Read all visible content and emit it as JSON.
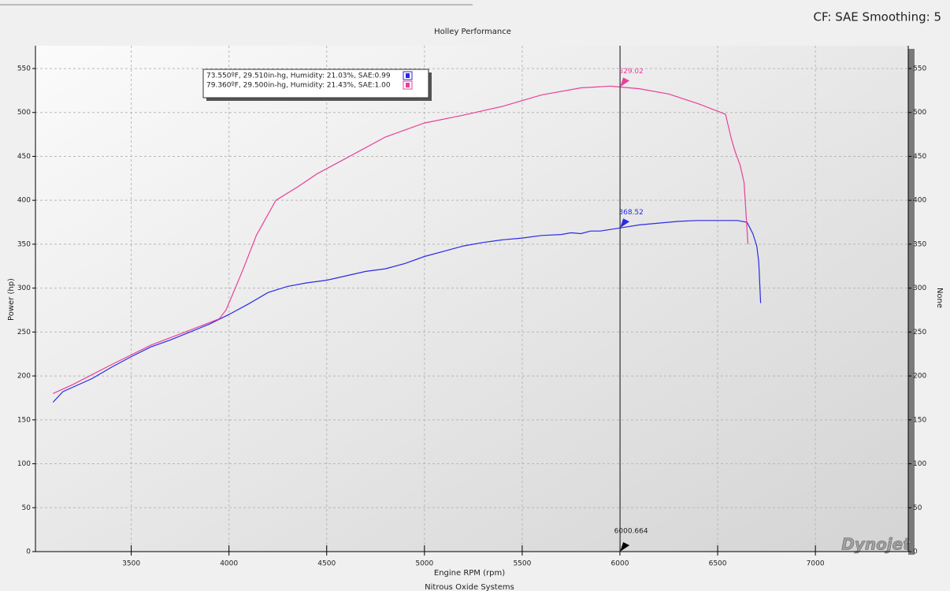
{
  "chart_data": {
    "type": "line",
    "title": "Holley Performance",
    "corner_note": "CF: SAE Smoothing: 5",
    "x_label": "Engine RPM (rpm)",
    "y_label": "Power (hp)",
    "y2_label": "None",
    "footer": "Nitrous Oxide Systems",
    "logo": "Dynojet",
    "xlim": [
      3010,
      7475
    ],
    "ylim": [
      0,
      576
    ],
    "xticks": [
      3500,
      4000,
      4500,
      5000,
      5500,
      6000,
      6500,
      7000
    ],
    "yticks": [
      0,
      50,
      100,
      150,
      200,
      250,
      300,
      350,
      400,
      450,
      500,
      550
    ],
    "grid": true,
    "legend_position": "upper left",
    "series": [
      {
        "name": "73.550ºF, 29.510in-hg, Humidity: 21.03%, SAE:0.99",
        "color": "#2a2ae6",
        "x": [
          3100,
          3150,
          3300,
          3400,
          3500,
          3600,
          3700,
          3800,
          3900,
          4000,
          4100,
          4200,
          4300,
          4400,
          4500,
          4600,
          4700,
          4800,
          4900,
          5000,
          5100,
          5200,
          5300,
          5400,
          5500,
          5600,
          5700,
          5750,
          5800,
          5850,
          5900,
          6000,
          6100,
          6200,
          6300,
          6400,
          6500,
          6600,
          6650,
          6680,
          6700,
          6710,
          6720
        ],
        "values": [
          170,
          182,
          197,
          210,
          222,
          233,
          241,
          250,
          259,
          270,
          282,
          295,
          302,
          306,
          309,
          314,
          319,
          322,
          328,
          336,
          342,
          348,
          352,
          355,
          357,
          360,
          361,
          363,
          362,
          365,
          365,
          368.5,
          372,
          374,
          376,
          377,
          377,
          377,
          375,
          362,
          348,
          330,
          283
        ]
      },
      {
        "name": "79.360ºF, 29.500in-hg, Humidity: 21.43%, SAE:1.00",
        "color": "#e8409a",
        "x": [
          3100,
          3200,
          3400,
          3600,
          3800,
          3950,
          3985,
          4070,
          4140,
          4240,
          4350,
          4450,
          4600,
          4800,
          5000,
          5200,
          5400,
          5600,
          5800,
          5950,
          6000,
          6100,
          6250,
          6400,
          6540,
          6570,
          6590,
          6615,
          6635,
          6655
        ],
        "values": [
          180,
          190,
          213,
          235,
          252,
          265,
          275,
          320,
          360,
          400,
          415,
          430,
          448,
          472,
          488,
          497,
          507,
          520,
          528,
          530,
          529,
          527,
          521,
          510,
          498,
          470,
          455,
          440,
          420,
          350
        ]
      }
    ],
    "cursor": {
      "x": 6000.664,
      "values": [
        368.52,
        529.02
      ]
    }
  }
}
